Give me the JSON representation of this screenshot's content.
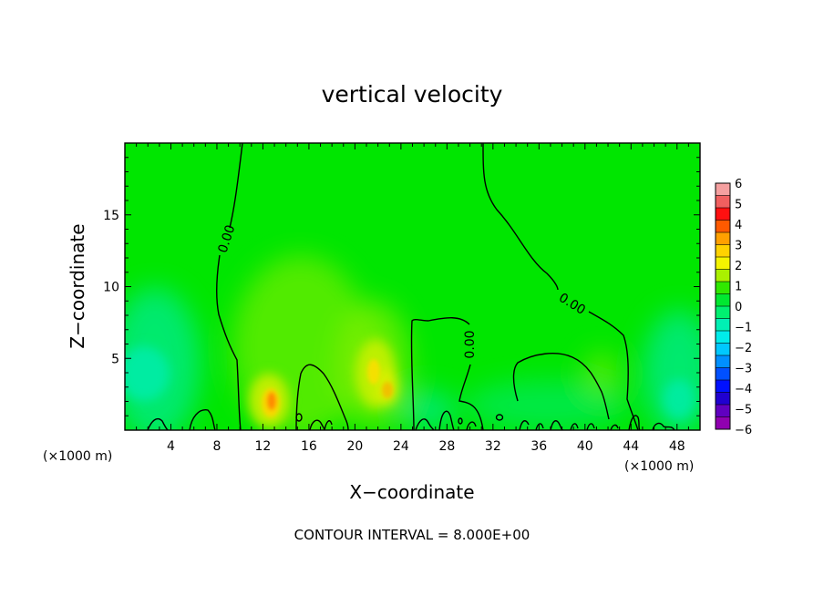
{
  "chart_data": {
    "type": "heatmap",
    "title": "vertical velocity",
    "xlabel": "X−coordinate",
    "ylabel": "Z−coordinate",
    "x_unit_left": "(×1000 m)",
    "x_unit_right": "(×1000 m)",
    "footer": "CONTOUR INTERVAL = 8.000E+00",
    "xlim": [
      0,
      50
    ],
    "ylim": [
      0,
      20
    ],
    "x_ticks": [
      4,
      8,
      12,
      16,
      20,
      24,
      28,
      32,
      36,
      40,
      44,
      48
    ],
    "y_ticks": [
      5,
      10,
      15
    ],
    "contour_labels": [
      "0.00",
      "0.00",
      "0.00"
    ],
    "colorbar": {
      "range": [
        -6,
        6
      ],
      "tick_labels": [
        "6",
        "5",
        "4",
        "3",
        "2",
        "1",
        "0",
        "−1",
        "−2",
        "−3",
        "−4",
        "−5",
        "−6"
      ],
      "colors": [
        "#f5a0a0",
        "#f06060",
        "#ff1010",
        "#ff5a00",
        "#ffa000",
        "#ffd200",
        "#f4f400",
        "#aaf000",
        "#30e800",
        "#00e830",
        "#00f070",
        "#00f0b4",
        "#00ecea",
        "#00c8ff",
        "#0090ff",
        "#0050ff",
        "#0010ff",
        "#2000d0",
        "#6000c0",
        "#9000b0"
      ]
    },
    "background_color": "#00e600",
    "features": [
      {
        "name": "updraft",
        "x": 12.8,
        "z": 2.0,
        "value": 4
      },
      {
        "name": "updraft",
        "x": 21.5,
        "z": 3.5,
        "value": 2
      },
      {
        "name": "downdraft",
        "x": 2.5,
        "z": 4.0,
        "value": -1.5
      },
      {
        "name": "downdraft",
        "x": 47.5,
        "z": 2.5,
        "value": -1.5
      }
    ]
  }
}
